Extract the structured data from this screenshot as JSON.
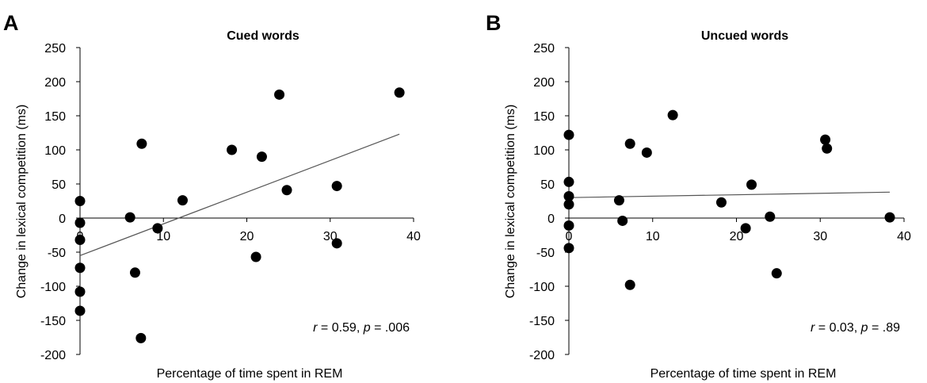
{
  "chart_data": [
    {
      "type": "scatter",
      "panel_label": "A",
      "title": "Cued words",
      "xlabel": "Percentage of time spent in REM",
      "ylabel": "Change in lexical competition (ms)",
      "xlim": [
        0,
        40
      ],
      "ylim": [
        -200,
        250
      ],
      "xticks": [
        0,
        10,
        20,
        30,
        40
      ],
      "yticks": [
        250,
        200,
        150,
        100,
        50,
        0,
        -50,
        -100,
        -150,
        -200
      ],
      "x_axis_at_y": 0,
      "grid": false,
      "marker_color": "#000000",
      "points": [
        {
          "x": 0,
          "y": 25
        },
        {
          "x": 0,
          "y": -7
        },
        {
          "x": 0,
          "y": -32
        },
        {
          "x": 0,
          "y": -73
        },
        {
          "x": 0,
          "y": -108
        },
        {
          "x": 0,
          "y": -136
        },
        {
          "x": 6,
          "y": 1
        },
        {
          "x": 6.6,
          "y": -80
        },
        {
          "x": 7.4,
          "y": 109
        },
        {
          "x": 7.3,
          "y": -176
        },
        {
          "x": 9.3,
          "y": -15
        },
        {
          "x": 12.3,
          "y": 26
        },
        {
          "x": 18.2,
          "y": 100
        },
        {
          "x": 21.1,
          "y": -57
        },
        {
          "x": 21.8,
          "y": 90
        },
        {
          "x": 23.9,
          "y": 181
        },
        {
          "x": 24.8,
          "y": 41
        },
        {
          "x": 30.8,
          "y": 47
        },
        {
          "x": 30.8,
          "y": -37
        },
        {
          "x": 38.3,
          "y": 184
        }
      ],
      "trendline": [
        {
          "x": 0,
          "y": -55
        },
        {
          "x": 38.3,
          "y": 123
        }
      ],
      "annotation": {
        "r": "r",
        "r_value": " = 0.59, ",
        "p": "p",
        "p_value": " = .006"
      }
    },
    {
      "type": "scatter",
      "panel_label": "B",
      "title": "Uncued words",
      "xlabel": "Percentage of time spent in REM",
      "ylabel": "Change in lexical competition (ms)",
      "xlim": [
        0,
        40
      ],
      "ylim": [
        -200,
        250
      ],
      "xticks": [
        0,
        10,
        20,
        30,
        40
      ],
      "yticks": [
        250,
        200,
        150,
        100,
        50,
        0,
        -50,
        -100,
        -150,
        -200
      ],
      "x_axis_at_y": 0,
      "grid": false,
      "marker_color": "#000000",
      "points": [
        {
          "x": 0,
          "y": 122
        },
        {
          "x": 0,
          "y": 53
        },
        {
          "x": 0,
          "y": 32
        },
        {
          "x": 0,
          "y": 20
        },
        {
          "x": 0,
          "y": -11
        },
        {
          "x": 0,
          "y": -44
        },
        {
          "x": 6,
          "y": 26
        },
        {
          "x": 6.4,
          "y": -4
        },
        {
          "x": 7.3,
          "y": 109
        },
        {
          "x": 7.3,
          "y": -98
        },
        {
          "x": 9.3,
          "y": 96
        },
        {
          "x": 12.4,
          "y": 151
        },
        {
          "x": 18.2,
          "y": 23
        },
        {
          "x": 21.1,
          "y": -15
        },
        {
          "x": 21.8,
          "y": 49
        },
        {
          "x": 24,
          "y": 2
        },
        {
          "x": 24.8,
          "y": -81
        },
        {
          "x": 30.6,
          "y": 115
        },
        {
          "x": 30.8,
          "y": 102
        },
        {
          "x": 38.3,
          "y": 1
        }
      ],
      "trendline": [
        {
          "x": 0,
          "y": 30
        },
        {
          "x": 38.3,
          "y": 38
        }
      ],
      "annotation": {
        "r": "r",
        "r_value": " = 0.03, ",
        "p": "p",
        "p_value": " = .89"
      }
    }
  ]
}
